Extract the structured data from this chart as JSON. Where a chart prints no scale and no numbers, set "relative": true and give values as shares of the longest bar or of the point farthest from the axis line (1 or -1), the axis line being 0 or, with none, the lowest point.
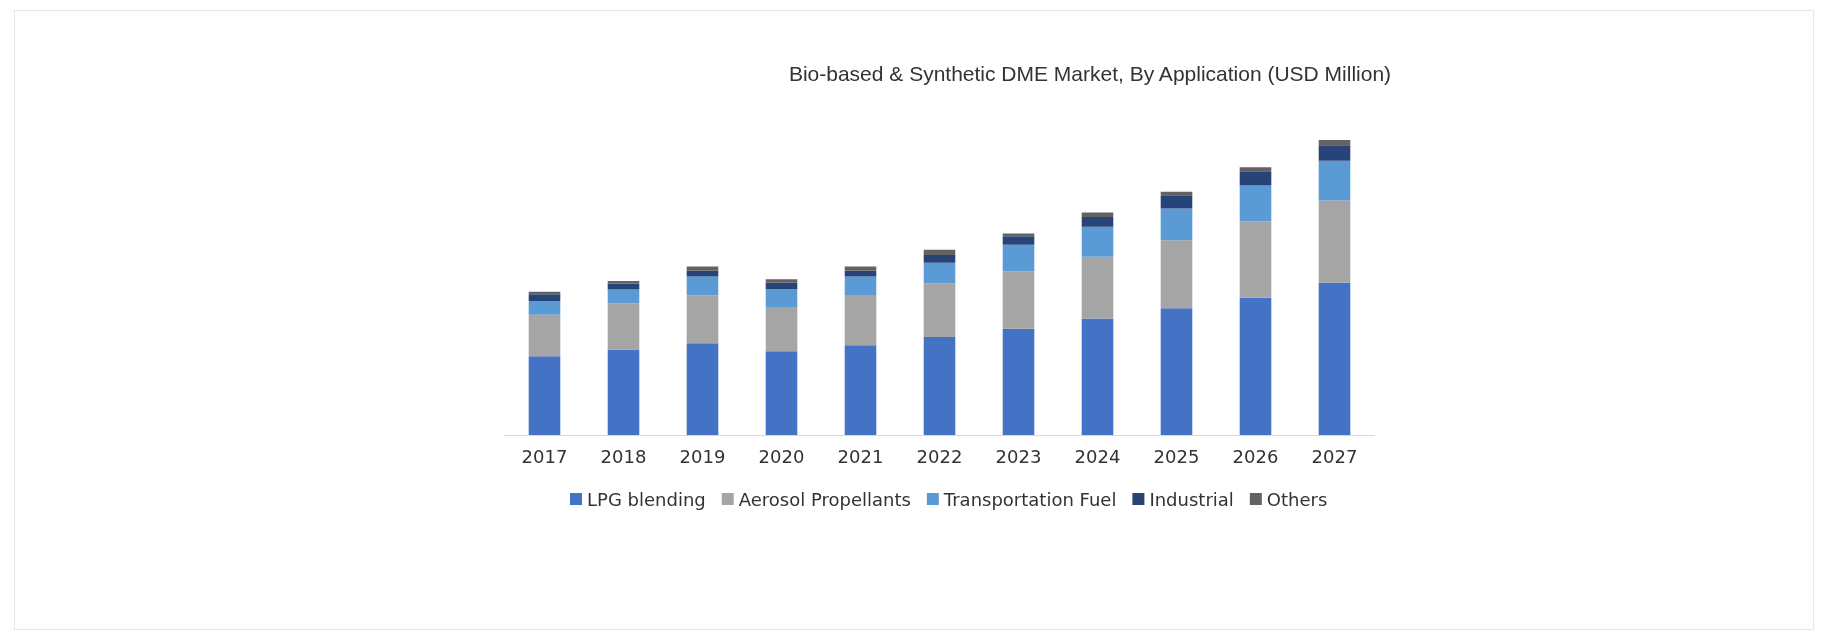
{
  "chart_data": {
    "type": "bar",
    "title": "Bio-based & Synthetic DME Market, By Application (USD Million)",
    "categories": [
      "2017",
      "2018",
      "2019",
      "2020",
      "2021",
      "2022",
      "2023",
      "2024",
      "2025",
      "2026",
      "2027"
    ],
    "stacked": true,
    "relative": true,
    "legend": "bottom",
    "series": [
      {
        "name": "LPG blending",
        "color": "#4472c4",
        "values": [
          0.267,
          0.29,
          0.311,
          0.284,
          0.304,
          0.332,
          0.36,
          0.395,
          0.43,
          0.465,
          0.516
        ]
      },
      {
        "name": "Aerosol Propellants",
        "color": "#a5a5a5",
        "values": [
          0.141,
          0.156,
          0.162,
          0.15,
          0.171,
          0.182,
          0.195,
          0.209,
          0.23,
          0.259,
          0.279
        ]
      },
      {
        "name": "Transportation Fuel",
        "color": "#5b9bd5",
        "values": [
          0.046,
          0.047,
          0.064,
          0.061,
          0.062,
          0.07,
          0.09,
          0.102,
          0.108,
          0.122,
          0.135
        ]
      },
      {
        "name": "Industrial",
        "color": "#264478",
        "values": [
          0.023,
          0.02,
          0.02,
          0.021,
          0.02,
          0.026,
          0.029,
          0.033,
          0.045,
          0.048,
          0.052
        ]
      },
      {
        "name": "Others",
        "color": "#636363",
        "values": [
          0.009,
          0.009,
          0.014,
          0.012,
          0.014,
          0.018,
          0.009,
          0.015,
          0.012,
          0.014,
          0.018
        ]
      }
    ]
  }
}
